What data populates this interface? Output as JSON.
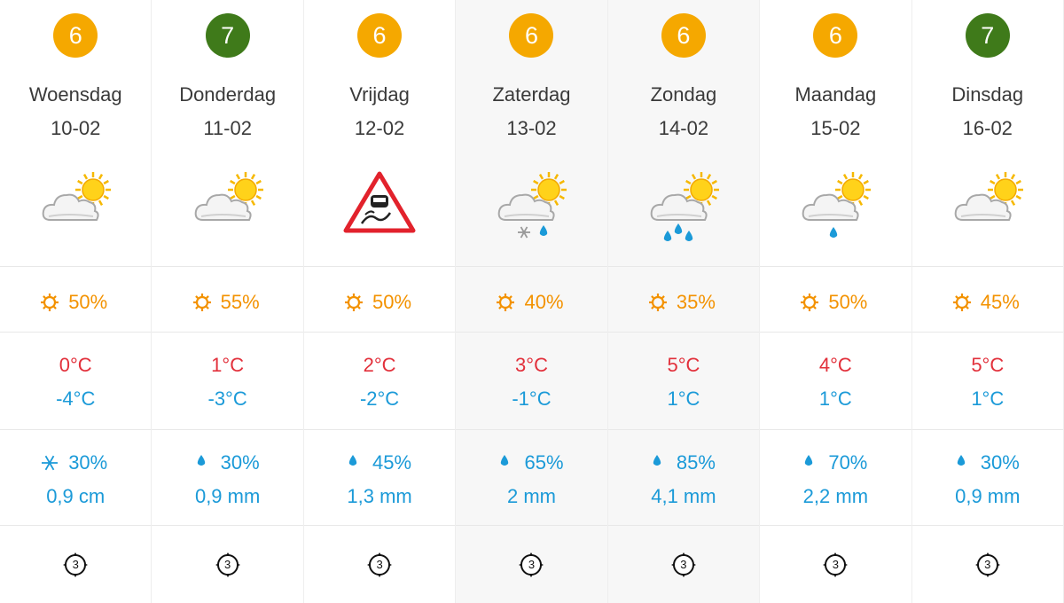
{
  "days": [
    {
      "score": "6",
      "score_color": "#f5a800",
      "day": "Woensdag",
      "date": "10-02",
      "icon": "sun-cloud",
      "sun": "50%",
      "max": "0°C",
      "min": "-4°C",
      "precip_icon": "snow",
      "precip": "30%",
      "amount": "0,9 cm",
      "wind": "3",
      "weekend": false
    },
    {
      "score": "7",
      "score_color": "#3f7a1a",
      "day": "Donderdag",
      "date": "11-02",
      "icon": "sun-cloud",
      "sun": "55%",
      "max": "1°C",
      "min": "-3°C",
      "precip_icon": "rain",
      "precip": "30%",
      "amount": "0,9 mm",
      "wind": "3",
      "weekend": false
    },
    {
      "score": "6",
      "score_color": "#f5a800",
      "day": "Vrijdag",
      "date": "12-02",
      "icon": "slippery",
      "sun": "50%",
      "max": "2°C",
      "min": "-2°C",
      "precip_icon": "rain",
      "precip": "45%",
      "amount": "1,3 mm",
      "wind": "3",
      "weekend": false
    },
    {
      "score": "6",
      "score_color": "#f5a800",
      "day": "Zaterdag",
      "date": "13-02",
      "icon": "sun-cloud-sleet",
      "sun": "40%",
      "max": "3°C",
      "min": "-1°C",
      "precip_icon": "rain",
      "precip": "65%",
      "amount": "2 mm",
      "wind": "3",
      "weekend": true
    },
    {
      "score": "6",
      "score_color": "#f5a800",
      "day": "Zondag",
      "date": "14-02",
      "icon": "sun-cloud-rain",
      "sun": "35%",
      "max": "5°C",
      "min": "1°C",
      "precip_icon": "rain",
      "precip": "85%",
      "amount": "4,1 mm",
      "wind": "3",
      "weekend": true
    },
    {
      "score": "6",
      "score_color": "#f5a800",
      "day": "Maandag",
      "date": "15-02",
      "icon": "sun-cloud-drizzle",
      "sun": "50%",
      "max": "4°C",
      "min": "1°C",
      "precip_icon": "rain",
      "precip": "70%",
      "amount": "2,2 mm",
      "wind": "3",
      "weekend": false
    },
    {
      "score": "7",
      "score_color": "#3f7a1a",
      "day": "Dinsdag",
      "date": "16-02",
      "icon": "sun-cloud",
      "sun": "45%",
      "max": "5°C",
      "min": "1°C",
      "precip_icon": "rain",
      "precip": "30%",
      "amount": "0,9 mm",
      "wind": "3",
      "weekend": false
    }
  ]
}
